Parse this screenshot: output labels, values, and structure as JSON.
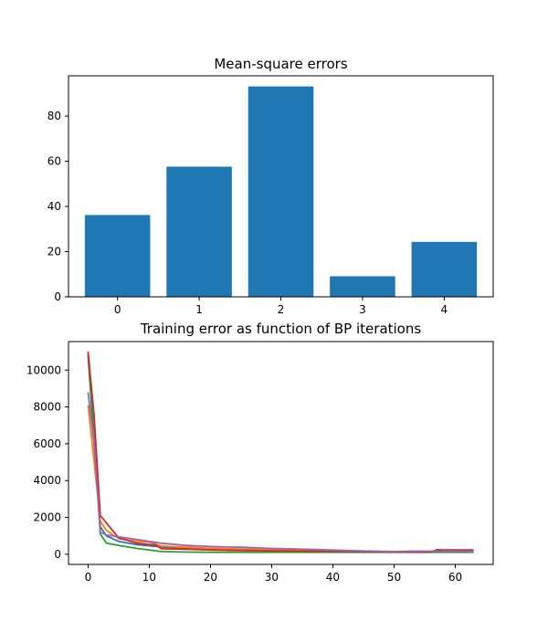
{
  "colors": {
    "bar": "#1f77b4",
    "series": [
      "#1f77b4",
      "#ff7f0e",
      "#2ca02c",
      "#d62728",
      "#9467bd"
    ]
  },
  "chart_data": [
    {
      "type": "bar",
      "title": "Mean-square errors",
      "xlabel": "",
      "ylabel": "",
      "categories": [
        "0",
        "1",
        "2",
        "3",
        "4"
      ],
      "values": [
        36.2,
        57.6,
        93.1,
        9.1,
        24.3
      ],
      "xlim": [
        -0.6,
        4.6
      ],
      "ylim": [
        0,
        97.8
      ],
      "yticks": [
        0,
        20,
        40,
        60,
        80
      ],
      "grid": false,
      "legend": "none"
    },
    {
      "type": "line",
      "title": "Training error as function of BP iterations",
      "xlabel": "",
      "ylabel": "",
      "xlim": [
        -3.2,
        66.2
      ],
      "ylim": [
        -550,
        11550
      ],
      "xticks": [
        0,
        10,
        20,
        30,
        40,
        50,
        60
      ],
      "yticks": [
        0,
        2000,
        4000,
        6000,
        8000,
        10000
      ],
      "grid": false,
      "legend": "none",
      "series": [
        {
          "x": [
            0,
            1,
            2,
            3,
            5,
            8,
            12,
            16,
            20,
            25,
            30,
            35,
            40,
            45,
            50,
            55,
            57,
            60,
            63
          ],
          "y": [
            10800,
            6000,
            1500,
            1000,
            700,
            520,
            400,
            330,
            280,
            230,
            200,
            180,
            160,
            150,
            140,
            130,
            130,
            130,
            130
          ]
        },
        {
          "x": [
            0,
            1,
            2,
            3,
            5,
            8,
            10,
            12,
            16,
            20,
            25,
            30,
            35,
            40,
            45,
            50,
            55,
            57,
            60,
            63
          ],
          "y": [
            8100,
            5000,
            1800,
            1300,
            850,
            700,
            650,
            450,
            380,
            330,
            290,
            250,
            220,
            190,
            160,
            140,
            130,
            130,
            130,
            130
          ]
        },
        {
          "x": [
            0,
            1,
            2,
            3,
            5,
            8,
            12,
            16,
            20,
            25,
            30,
            35,
            40,
            45,
            50,
            55,
            57,
            60,
            63
          ],
          "y": [
            10900,
            6500,
            1100,
            600,
            480,
            320,
            150,
            120,
            110,
            110,
            110,
            110,
            110,
            110,
            110,
            110,
            110,
            110,
            110
          ]
        },
        {
          "x": [
            0,
            1,
            2,
            3,
            5,
            8,
            10,
            11,
            12,
            16,
            20,
            25,
            30,
            35,
            40,
            45,
            50,
            55,
            56,
            57,
            58,
            60,
            63
          ],
          "y": [
            11000,
            7500,
            2100,
            1700,
            900,
            600,
            520,
            520,
            300,
            280,
            240,
            210,
            190,
            170,
            160,
            140,
            120,
            120,
            120,
            250,
            240,
            240,
            240
          ]
        },
        {
          "x": [
            0,
            1,
            2,
            3,
            5,
            8,
            10,
            12,
            16,
            20,
            25,
            30,
            35,
            40,
            45,
            50,
            53,
            55,
            57,
            60,
            63
          ],
          "y": [
            8800,
            6000,
            1200,
            1050,
            950,
            800,
            700,
            600,
            480,
            420,
            380,
            320,
            280,
            230,
            180,
            150,
            170,
            170,
            170,
            160,
            160
          ]
        }
      ]
    }
  ]
}
